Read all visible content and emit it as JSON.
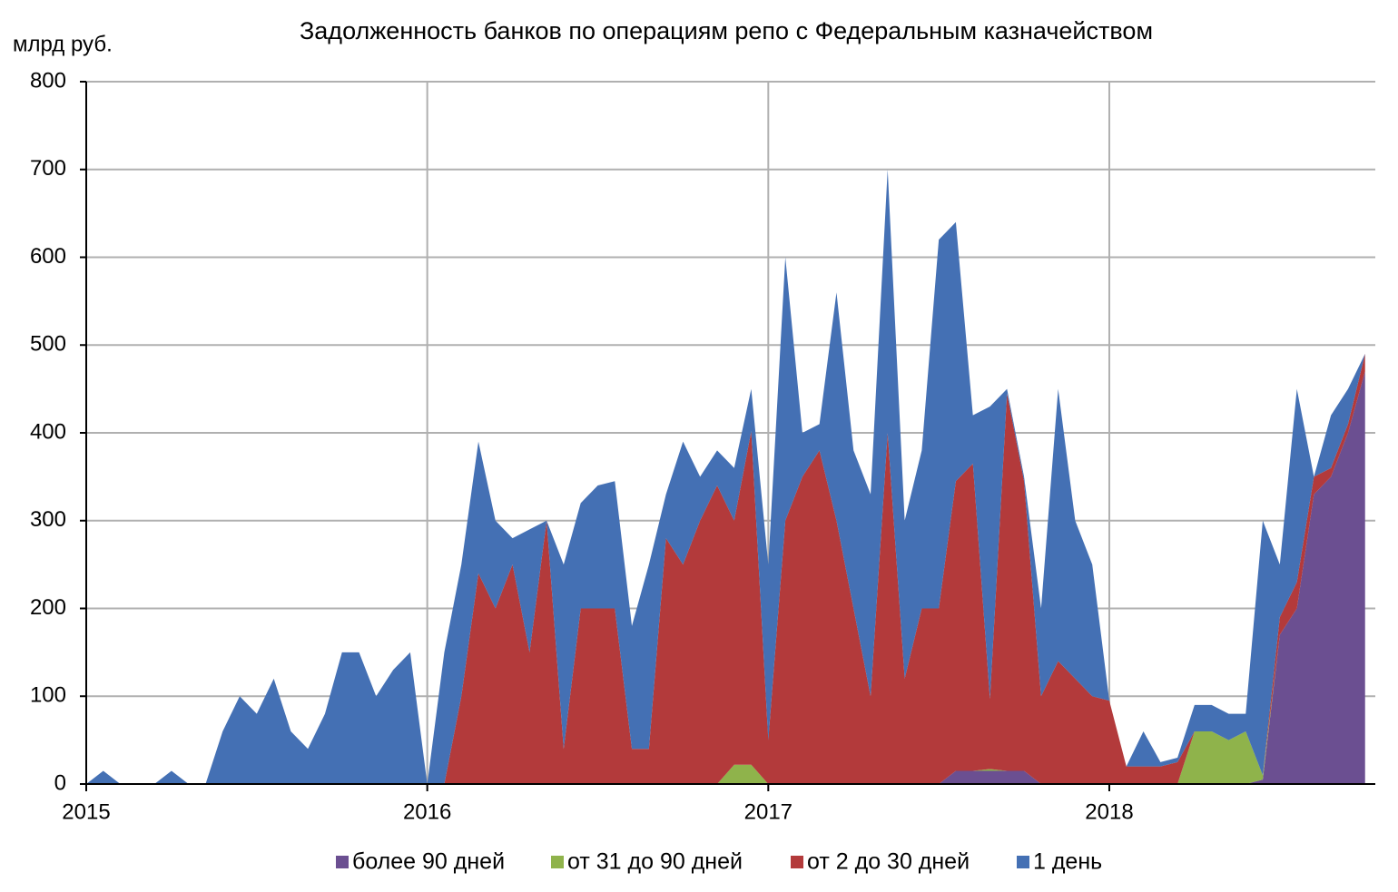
{
  "chart_data": {
    "type": "area",
    "stacked": true,
    "title": "Задолженность банков по операциям репо с Федеральным казначейством",
    "y_label": "млрд руб.",
    "x": [
      2015.0,
      2015.05,
      2015.1,
      2015.15,
      2015.2,
      2015.25,
      2015.3,
      2015.35,
      2015.4,
      2015.45,
      2015.5,
      2015.55,
      2015.6,
      2015.65,
      2015.7,
      2015.75,
      2015.8,
      2015.85,
      2015.9,
      2015.95,
      2016.0,
      2016.05,
      2016.1,
      2016.15,
      2016.2,
      2016.25,
      2016.3,
      2016.35,
      2016.4,
      2016.45,
      2016.5,
      2016.55,
      2016.6,
      2016.65,
      2016.7,
      2016.75,
      2016.8,
      2016.85,
      2016.9,
      2016.95,
      2017.0,
      2017.05,
      2017.1,
      2017.15,
      2017.2,
      2017.25,
      2017.3,
      2017.35,
      2017.4,
      2017.45,
      2017.5,
      2017.55,
      2017.6,
      2017.65,
      2017.7,
      2017.75,
      2017.8,
      2017.85,
      2017.9,
      2017.95,
      2018.0,
      2018.05,
      2018.1,
      2018.15,
      2018.2,
      2018.25,
      2018.3,
      2018.35,
      2018.4,
      2018.45,
      2018.5,
      2018.55,
      2018.6,
      2018.65,
      2018.7,
      2018.75
    ],
    "xlim": [
      2015,
      2018.78
    ],
    "xticks": [
      2015,
      2016,
      2017,
      2018
    ],
    "ylim": [
      0,
      800
    ],
    "yticks": [
      0,
      100,
      200,
      300,
      400,
      500,
      600,
      700,
      800
    ],
    "grid": true,
    "legend": "bottom",
    "series": [
      {
        "name": "более 90 дней",
        "color": "#6b4f91",
        "values": [
          0,
          0,
          0,
          0,
          0,
          0,
          0,
          0,
          0,
          0,
          0,
          0,
          0,
          0,
          0,
          0,
          0,
          0,
          0,
          0,
          0,
          0,
          0,
          0,
          0,
          0,
          0,
          0,
          0,
          0,
          0,
          0,
          0,
          0,
          0,
          0,
          0,
          0,
          0,
          0,
          0,
          0,
          0,
          0,
          0,
          0,
          0,
          0,
          0,
          0,
          0,
          15,
          15,
          15,
          15,
          15,
          0,
          0,
          0,
          0,
          0,
          0,
          0,
          0,
          0,
          0,
          0,
          0,
          0,
          5,
          170,
          200,
          330,
          350,
          400,
          470
        ]
      },
      {
        "name": "от 31 до 90 дней",
        "color": "#8fb34b",
        "values": [
          0,
          0,
          0,
          0,
          0,
          0,
          0,
          0,
          0,
          0,
          0,
          0,
          0,
          0,
          0,
          0,
          0,
          0,
          0,
          0,
          0,
          0,
          0,
          0,
          0,
          0,
          0,
          0,
          0,
          0,
          0,
          0,
          0,
          0,
          0,
          0,
          0,
          0,
          22,
          22,
          0,
          0,
          0,
          0,
          0,
          0,
          0,
          0,
          0,
          0,
          0,
          0,
          0,
          2,
          0,
          0,
          0,
          0,
          0,
          0,
          0,
          0,
          0,
          0,
          0,
          60,
          60,
          50,
          60,
          5,
          0,
          0,
          0,
          0,
          0,
          0
        ]
      },
      {
        "name": "от 2 до 30 дней",
        "color": "#b33a3b",
        "values": [
          0,
          0,
          0,
          0,
          0,
          0,
          0,
          0,
          0,
          0,
          0,
          0,
          0,
          0,
          0,
          0,
          0,
          0,
          0,
          0,
          0,
          0,
          100,
          240,
          200,
          250,
          150,
          300,
          40,
          200,
          200,
          200,
          40,
          40,
          280,
          250,
          300,
          340,
          278,
          380,
          50,
          300,
          350,
          380,
          300,
          200,
          100,
          400,
          120,
          200,
          200,
          330,
          350,
          80,
          430,
          330,
          100,
          140,
          120,
          100,
          95,
          20,
          20,
          20,
          25,
          0,
          0,
          0,
          0,
          0,
          20,
          30,
          20,
          10,
          10,
          20
        ]
      },
      {
        "name": "1 день",
        "color": "#4470b4",
        "values": [
          0,
          15,
          0,
          0,
          0,
          15,
          0,
          0,
          60,
          100,
          80,
          120,
          60,
          40,
          80,
          150,
          150,
          100,
          130,
          150,
          0,
          150,
          150,
          150,
          100,
          30,
          140,
          0,
          210,
          120,
          140,
          145,
          140,
          210,
          50,
          140,
          50,
          40,
          60,
          48,
          200,
          300,
          50,
          30,
          260,
          180,
          230,
          300,
          180,
          180,
          420,
          295,
          55,
          333,
          5,
          5,
          100,
          310,
          180,
          150,
          0,
          0,
          40,
          5,
          5,
          30,
          30,
          30,
          20,
          290,
          60,
          220,
          0,
          60,
          40,
          0
        ]
      }
    ]
  }
}
